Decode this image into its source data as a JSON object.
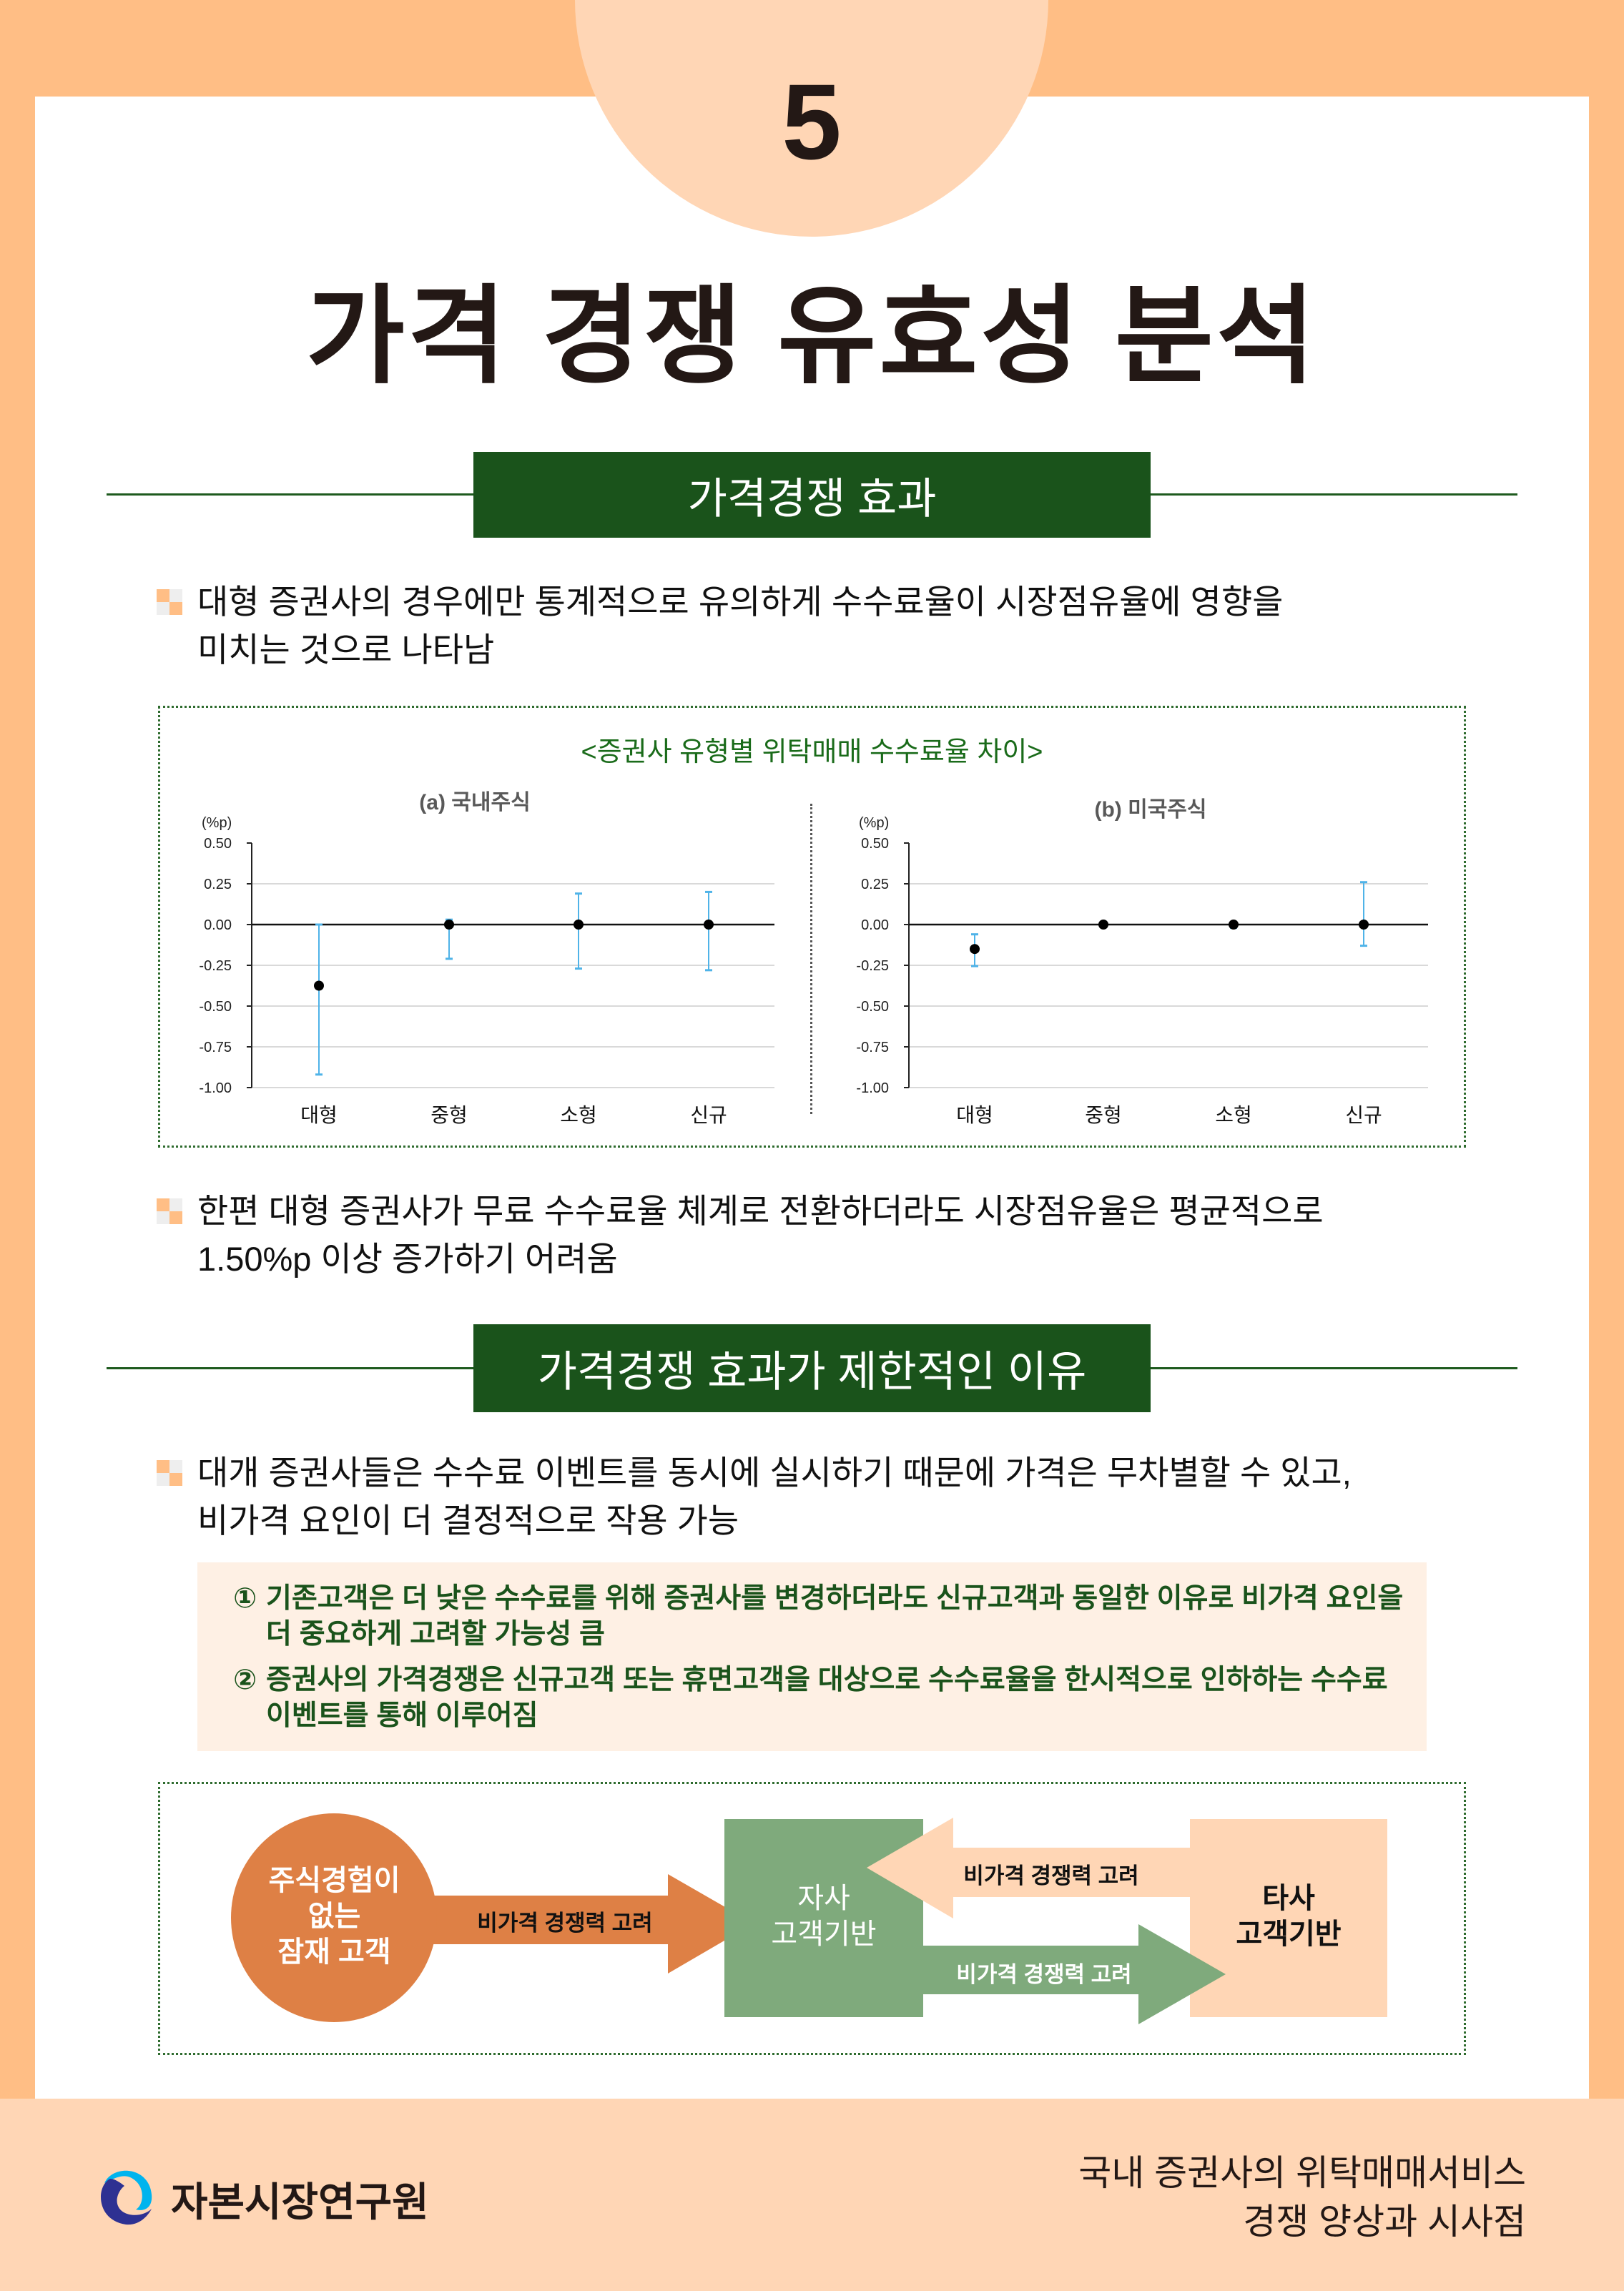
{
  "page_number": "5",
  "title": "가격 경쟁 유효성 분석",
  "sections": [
    {
      "header": "가격경쟁 효과"
    },
    {
      "header": "가격경쟁 효과가 제한적인 이유"
    }
  ],
  "bullets": [
    {
      "line1": "대형 증권사의 경우에만 통계적으로 유의하게 수수료율이 시장점유율에 영향을",
      "line2": "미치는 것으로 나타남"
    },
    {
      "line1": "한편 대형 증권사가 무료 수수료율 체계로 전환하더라도 시장점유율은 평균적으로",
      "line2": "1.50%p 이상 증가하기 어려움"
    },
    {
      "line1": "대개 증권사들은 수수료 이벤트를 동시에 실시하기 때문에 가격은 무차별할 수 있고,",
      "line2": "비가격 요인이 더 결정적으로 작용 가능"
    }
  ],
  "bullet_icon": "checker-square-icon",
  "figure_title": "<증권사 유형별 위탁매매 수수료율 차이>",
  "chart_data": [
    {
      "type": "scatter",
      "title": "(a) 국내주식",
      "ylabel": "(%p)",
      "categories": [
        "대형",
        "중형",
        "소형",
        "신규"
      ],
      "values": [
        -0.375,
        0.0,
        0.0,
        0.0
      ],
      "error_low": [
        -0.92,
        -0.21,
        -0.27,
        -0.28
      ],
      "error_high": [
        0.0,
        0.03,
        0.19,
        0.2
      ],
      "ylim": [
        -1.0,
        0.5
      ],
      "yticks": [
        "0.50",
        "0.25",
        "0.00",
        "-0.25",
        "-0.50",
        "-0.75",
        "-1.00"
      ],
      "grid": true
    },
    {
      "type": "scatter",
      "title": "(b) 미국주식",
      "ylabel": "(%p)",
      "categories": [
        "대형",
        "중형",
        "소형",
        "신규"
      ],
      "values": [
        -0.15,
        0.0,
        0.0,
        0.0
      ],
      "error_low": [
        -0.255,
        0.0,
        -0.02,
        -0.13
      ],
      "error_high": [
        -0.06,
        0.0,
        0.01,
        0.26
      ],
      "ylim": [
        -1.0,
        0.5
      ],
      "yticks": [
        "0.50",
        "0.25",
        "0.00",
        "-0.25",
        "-0.50",
        "-0.75",
        "-1.00"
      ],
      "grid": true
    }
  ],
  "reasons": [
    {
      "marker": "①",
      "line1": "기존고객은 더 낮은 수수료를 위해 증권사를 변경하더라도 신규고객과 동일한 이유로 비가격 요인을",
      "line2": "더 중요하게 고려할 가능성 큼"
    },
    {
      "marker": "②",
      "line1": "증권사의 가격경쟁은 신규고객 또는 휴면고객을 대상으로 수수료율을 한시적으로 인하하는 수수료",
      "line2": "이벤트를 통해 이루어짐"
    }
  ],
  "diagram": {
    "potential": [
      "주식경험이",
      "없는",
      "잠재 고객"
    ],
    "arrow_label": "비가격 경쟁력 고려",
    "own": [
      "자사",
      "고객기반"
    ],
    "other": [
      "타사",
      "고객기반"
    ],
    "arrow_top_label": "비가격 경쟁력 고려",
    "arrow_bottom_label": "비가격 경쟁력 고려",
    "colors": {
      "orange": "#DE8045",
      "green": "#7FAA7C",
      "peach": "#FFD6B5"
    }
  },
  "footer": {
    "org": "자본시장연구원",
    "doc_line1": "국내 증권사의 위탁매매서비스",
    "doc_line2": "경쟁 양상과 시사점"
  },
  "colors": {
    "accent_green": "#1A531B",
    "background": "#FFBE85",
    "peach": "#FFD6B5",
    "error_bar": "#4FB3E8"
  }
}
